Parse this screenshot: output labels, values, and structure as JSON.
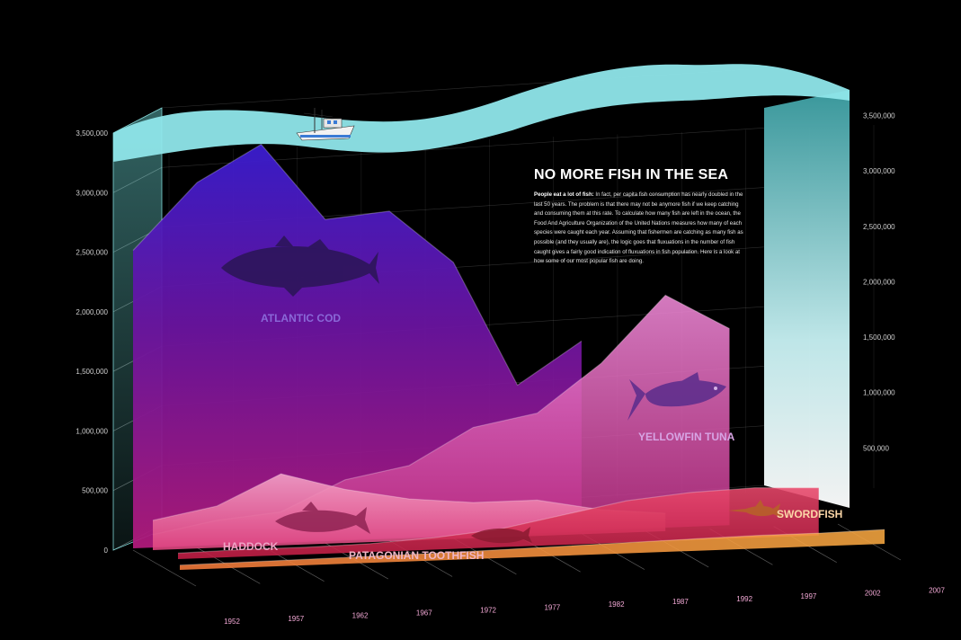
{
  "article": {
    "title": "NO MORE FISH IN THE SEA",
    "lead": "People eat a lot of fish:",
    "body": " In fact, per capita fish consumption has nearly doubled in the last 50 years. The problem is that there may not be anymore fish if we keep catching and consuming them at this rate. To calculate how many fish are left in the ocean, the Food And Agriculture Organization of the United Nations measures how many of each species were caught each year. Assuming that fishermen are catching as many fish as possible (and they usually are), the logic goes that fluxuations in the number of fish caught gives a fairly good indication of fluxuations in fish population. Here is a look at how some of our most popular fish are doing."
  },
  "colors": {
    "background": "#000000",
    "water": "#8fe6ea",
    "atlantic_cod": "#5a1fb0",
    "yellowfin_tuna": "#e86ac6",
    "haddock": "#f07aa8",
    "patagonian_toothfish": "#d8304e",
    "swordfish": "#f39a3c"
  },
  "icons": {
    "boat": "fishing-boat-icon",
    "cod": "cod-fish-icon",
    "tuna": "tuna-fish-icon",
    "haddock": "haddock-fish-icon",
    "toothfish": "toothfish-icon",
    "swordfish": "swordfish-icon"
  },
  "chart_data": {
    "type": "area",
    "title": "",
    "xlabel": "",
    "ylabel": "",
    "x": [
      1952,
      1957,
      1962,
      1967,
      1972,
      1977,
      1982,
      1987,
      1992,
      1997,
      2002,
      2007
    ],
    "y_ticks": [
      "0",
      "500,000",
      "1,000,000",
      "1,500,000",
      "2,000,000",
      "2,500,000",
      "3,000,000",
      "3,500,000"
    ],
    "y_ticks_right": [
      "500,000",
      "1,000,000",
      "1,500,000",
      "2,000,000",
      "2,500,000",
      "3,000,000",
      "3,500,000"
    ],
    "ylim": [
      0,
      3500000
    ],
    "grid": true,
    "series": [
      {
        "name": "ATLANTIC COD",
        "values": [
          2500000,
          3050000,
          3350000,
          2700000,
          2750000,
          2300000,
          1250000,
          1600000,
          null,
          null,
          null,
          null
        ]
      },
      {
        "name": "YELLOWFIN TUNA",
        "values": [
          100000,
          200000,
          250000,
          500000,
          600000,
          900000,
          1000000,
          1400000,
          1950000,
          1650000,
          null,
          null
        ]
      },
      {
        "name": "HADDOCK",
        "values": [
          250000,
          350000,
          600000,
          450000,
          350000,
          300000,
          300000,
          200000,
          150000,
          null,
          null,
          null
        ]
      },
      {
        "name": "PATAGONIAN TOOTHFISH",
        "values": [
          50000,
          60000,
          60000,
          70000,
          100000,
          150000,
          250000,
          350000,
          400000,
          420000,
          400000,
          null
        ]
      },
      {
        "name": "SWORDFISH",
        "values": [
          40000,
          45000,
          50000,
          55000,
          60000,
          70000,
          80000,
          90000,
          100000,
          110000,
          110000,
          120000
        ]
      }
    ]
  }
}
